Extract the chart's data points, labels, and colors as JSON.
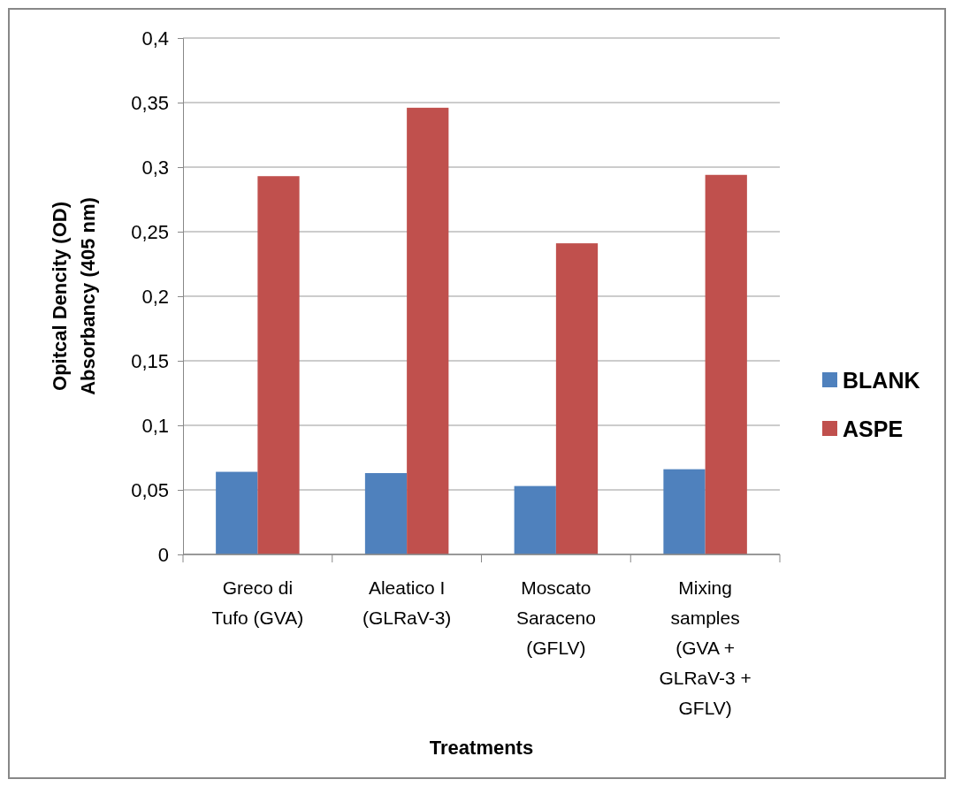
{
  "chart_data": {
    "type": "bar",
    "xlabel": "Treatments",
    "ylabel": "Opitcal Dencity (OD)\nAbsorbancy (405 nm)",
    "categories": [
      "Greco di\nTufo (GVA)",
      "Aleatico I\n(GLRaV-3)",
      "Moscato\nSaraceno\n(GFLV)",
      "Mixing\nsamples\n(GVA +\nGLRaV-3 +\nGFLV)"
    ],
    "series": [
      {
        "name": "BLANK",
        "color": "#4f81bd",
        "values": [
          0.064,
          0.063,
          0.053,
          0.066
        ]
      },
      {
        "name": "ASPE",
        "color": "#c0504d",
        "values": [
          0.293,
          0.346,
          0.241,
          0.294
        ]
      }
    ],
    "ylim": [
      0,
      0.4
    ],
    "yticks": [
      0,
      {
        "value": 0.05,
        "label": "0,05"
      },
      {
        "value": 0.1,
        "label": "0,1"
      },
      {
        "value": 0.15,
        "label": "0,15"
      },
      {
        "value": 0.2,
        "label": "0,2"
      },
      {
        "value": 0.25,
        "label": "0,25"
      },
      {
        "value": 0.3,
        "label": "0,3"
      },
      {
        "value": 0.35,
        "label": "0,35"
      },
      {
        "value": 0.4,
        "label": "0,4"
      }
    ],
    "grid": "y",
    "legend": "right"
  }
}
